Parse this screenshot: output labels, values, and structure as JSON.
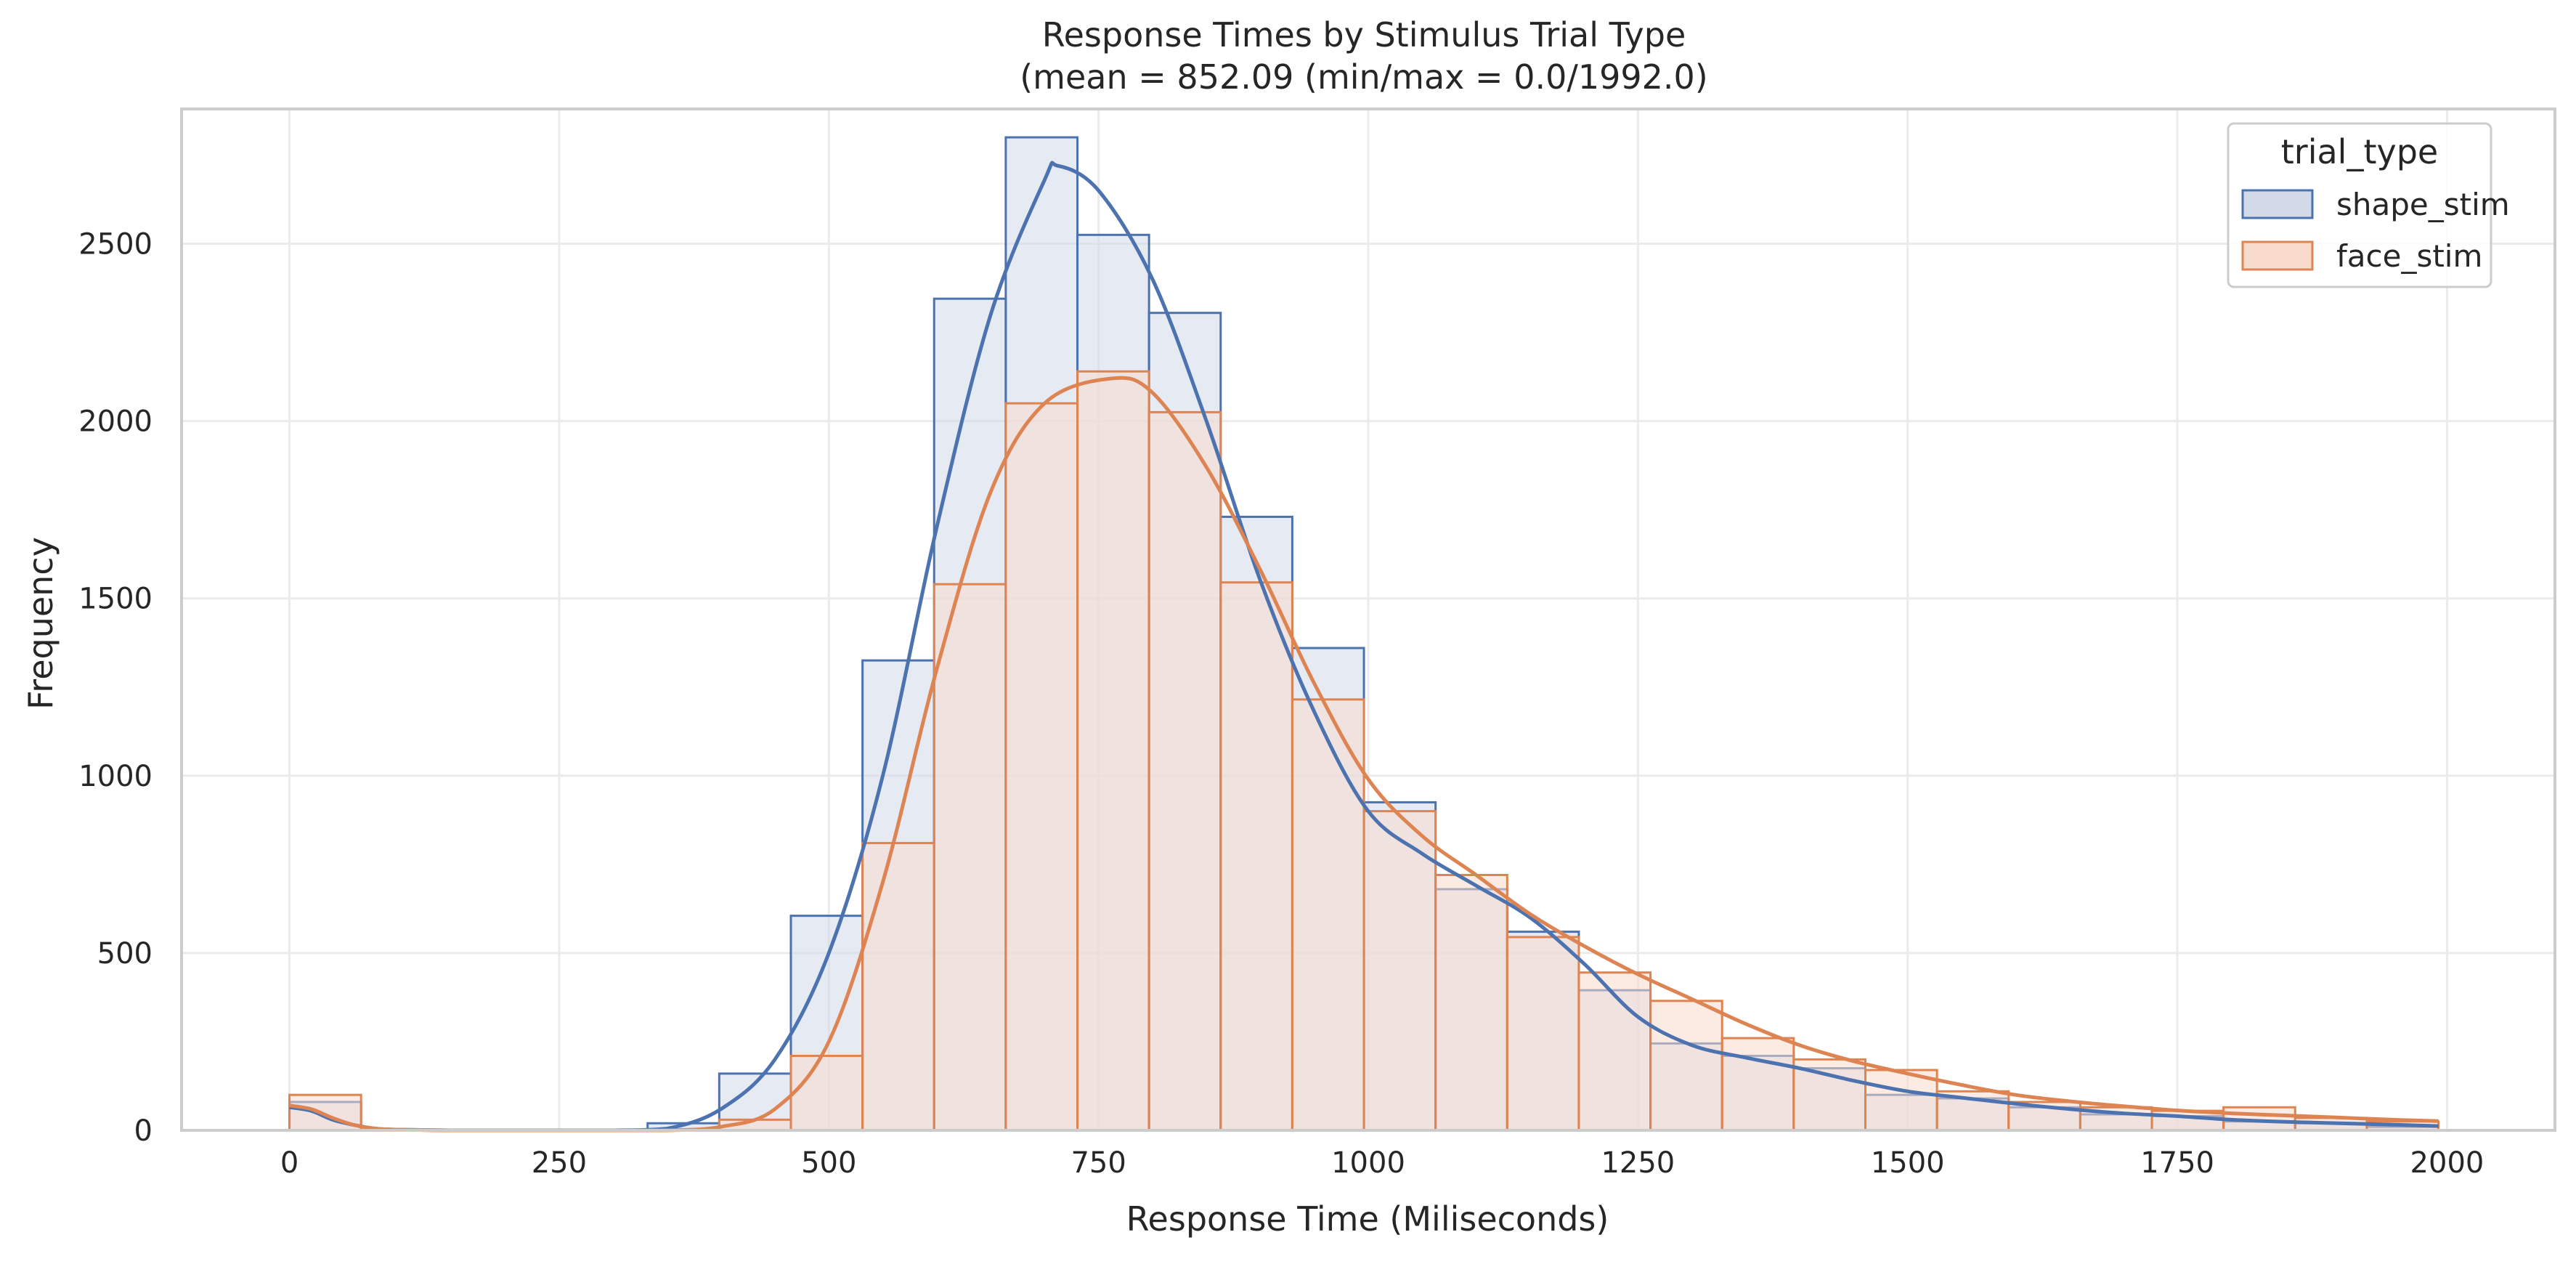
{
  "chart_data": {
    "type": "histogram",
    "title_line1": "Response Times by Stimulus Trial Type",
    "title_line2": "(mean = 852.09 (min/max = 0.0/1992.0)",
    "xlabel": "Response Time (Miliseconds)",
    "ylabel": "Frequency",
    "xlim": [
      -100,
      2100
    ],
    "ylim": [
      0,
      2880
    ],
    "xticks": [
      0,
      250,
      500,
      750,
      1000,
      1250,
      1500,
      1750,
      2000
    ],
    "xtick_labels": [
      "0",
      "250",
      "500",
      "750",
      "1000",
      "1250",
      "1500",
      "1750",
      "2000"
    ],
    "yticks": [
      0,
      500,
      1000,
      1500,
      2000,
      2500
    ],
    "ytick_labels": [
      "0",
      "500",
      "1000",
      "1500",
      "2000",
      "2500"
    ],
    "grid": true,
    "bin_width": 66.4,
    "bin_edges": [
      0,
      66.4,
      132.8,
      199.2,
      265.6,
      332,
      398.4,
      464.8,
      531.2,
      597.6,
      664,
      730.4,
      796.8,
      863.2,
      929.6,
      996,
      1062.4,
      1128.8,
      1195.2,
      1261.6,
      1328,
      1394.4,
      1460.8,
      1527.2,
      1593.6,
      1660,
      1726.4,
      1792.8,
      1859.2,
      1925.6,
      1992
    ],
    "legend": {
      "title": "trial_type",
      "placement": "top-right"
    },
    "series": [
      {
        "name": "shape_stim",
        "line_color": "#4c72b0",
        "fill_color": "#d2dae9",
        "counts": [
          80,
          0,
          0,
          0,
          0,
          20,
          160,
          605,
          1325,
          2345,
          2800,
          2525,
          2305,
          1730,
          1360,
          925,
          680,
          560,
          395,
          245,
          210,
          175,
          100,
          90,
          65,
          45,
          40,
          25,
          20,
          10
        ],
        "kde_x": [
          0,
          20,
          40,
          60,
          80,
          100,
          150,
          200,
          250,
          300,
          350,
          400,
          450,
          500,
          550,
          600,
          650,
          700,
          712,
          750,
          800,
          850,
          900,
          950,
          1000,
          1050,
          1100,
          1150,
          1200,
          1250,
          1300,
          1350,
          1400,
          1450,
          1500,
          1550,
          1600,
          1650,
          1700,
          1750,
          1800,
          1850,
          1900,
          1950,
          1992
        ],
        "kde_y": [
          65,
          55,
          30,
          15,
          5,
          2,
          0,
          0,
          0,
          0,
          5,
          60,
          200,
          500,
          1000,
          1700,
          2300,
          2680,
          2720,
          2650,
          2400,
          2000,
          1550,
          1180,
          900,
          780,
          690,
          600,
          470,
          320,
          240,
          205,
          175,
          140,
          110,
          92,
          75,
          60,
          48,
          40,
          30,
          24,
          20,
          16,
          12
        ]
      },
      {
        "name": "face_stim",
        "line_color": "#dd8452",
        "fill_color": "#f8dbcc",
        "counts": [
          100,
          0,
          0,
          0,
          0,
          0,
          30,
          210,
          810,
          1540,
          2050,
          2140,
          2025,
          1545,
          1215,
          900,
          720,
          545,
          445,
          365,
          260,
          200,
          170,
          110,
          80,
          65,
          55,
          65,
          35,
          25
        ],
        "kde_x": [
          0,
          20,
          40,
          60,
          80,
          100,
          150,
          200,
          250,
          300,
          350,
          400,
          450,
          500,
          550,
          600,
          650,
          700,
          762,
          800,
          850,
          900,
          950,
          1000,
          1050,
          1100,
          1150,
          1200,
          1250,
          1300,
          1350,
          1400,
          1450,
          1500,
          1550,
          1600,
          1650,
          1700,
          1750,
          1800,
          1850,
          1900,
          1950,
          1992
        ],
        "kde_y": [
          70,
          60,
          35,
          15,
          5,
          2,
          0,
          0,
          0,
          0,
          0,
          10,
          60,
          250,
          700,
          1300,
          1800,
          2050,
          2120,
          2080,
          1870,
          1580,
          1260,
          990,
          830,
          720,
          610,
          520,
          440,
          370,
          300,
          240,
          195,
          160,
          128,
          100,
          82,
          68,
          56,
          48,
          42,
          36,
          30,
          26
        ]
      }
    ]
  }
}
